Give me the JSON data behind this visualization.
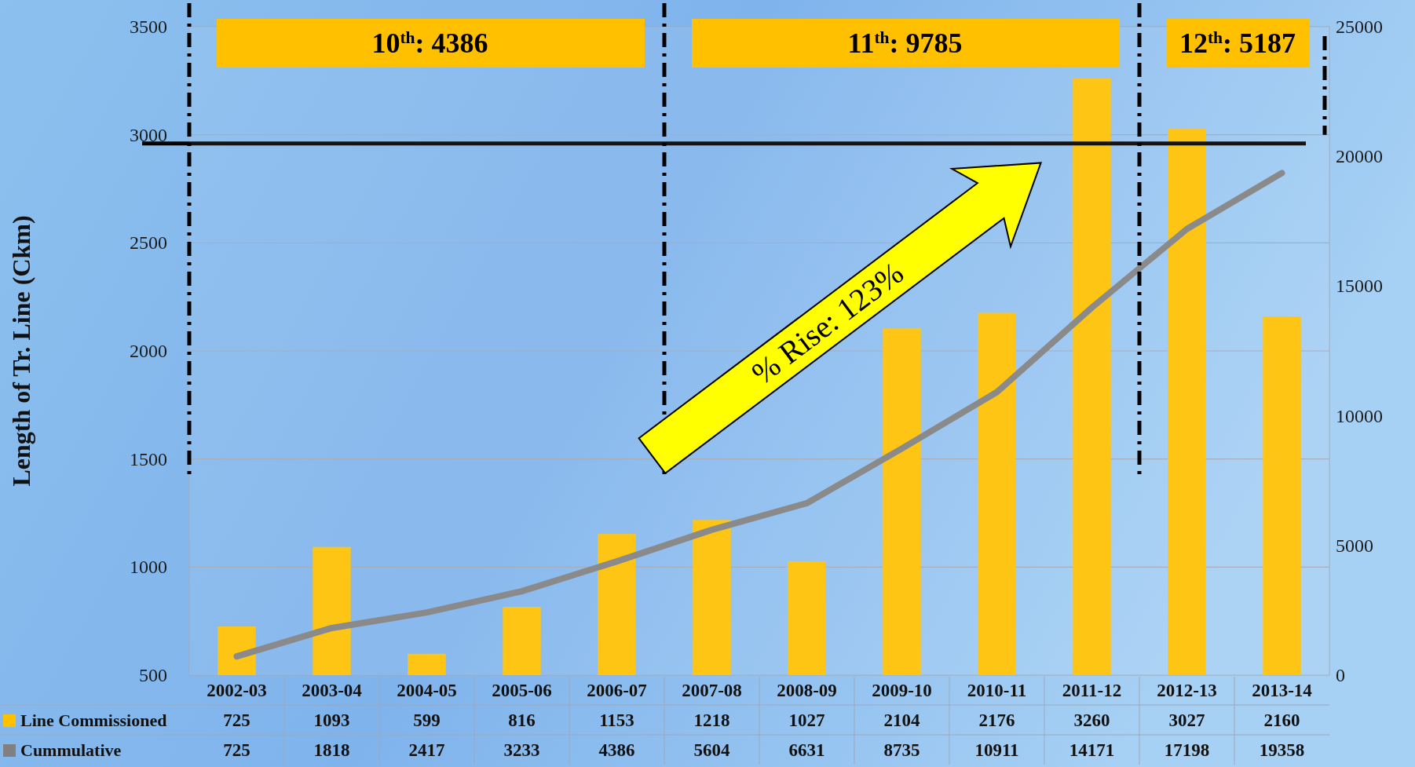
{
  "chart_data": {
    "type": "bar",
    "ylabel": "Length of Tr. Line (Ckm)",
    "categories": [
      "2002-03",
      "2003-04",
      "2004-05",
      "2005-06",
      "2006-07",
      "2007-08",
      "2008-09",
      "2009-10",
      "2010-11",
      "2011-12",
      "2012-13",
      "2013-14"
    ],
    "series": [
      {
        "name": "Line Commissioned",
        "color": "#ffc000",
        "values": [
          725,
          1093,
          599,
          816,
          1153,
          1218,
          1027,
          2104,
          2176,
          3260,
          3027,
          2160
        ]
      },
      {
        "name": "Cummulative",
        "type": "line",
        "axis": "y2",
        "color": "#808080",
        "values": [
          725,
          1818,
          2417,
          3233,
          4386,
          5604,
          6631,
          8735,
          10911,
          14171,
          17198,
          19358
        ]
      }
    ],
    "ylim": [
      500,
      3500
    ],
    "yticks": [
      500,
      1000,
      1500,
      2000,
      2500,
      3000,
      3500
    ],
    "y2lim": [
      0,
      25000
    ],
    "y2ticks": [
      0,
      5000,
      10000,
      15000,
      20000,
      25000
    ],
    "grid": "y",
    "data_labels": true,
    "legend": "bottom left",
    "bands": [
      {
        "axis": "x",
        "from": "2002-03",
        "to": "2006-07",
        "label": "10$^{th}$: 4386",
        "color": "#ffffff"
      },
      {
        "axis": "x",
        "from": "2007-08",
        "to": "2011-12",
        "label": "11$^{th}$: 9785",
        "color": "#ffffff"
      },
      {
        "axis": "x",
        "from": "2012-13",
        "to": "2013-14",
        "label": "12$^{th}$: 5187",
        "color": "#ffffff"
      }
    ],
    "ref_lines": [
      {
        "axis": "y",
        "value": 2960,
        "color": "#000000"
      }
    ],
    "annotations": [
      "% Rise: 123%"
    ]
  }
}
